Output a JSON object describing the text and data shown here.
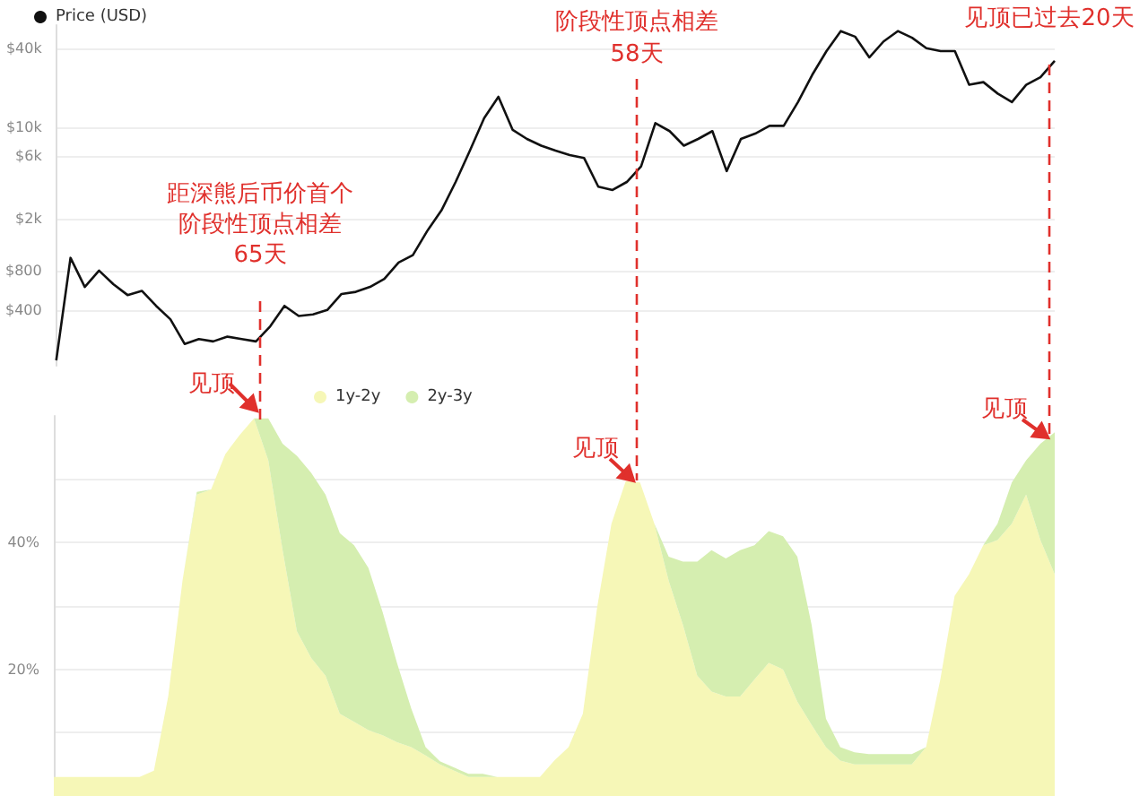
{
  "chart_data": [
    {
      "type": "line",
      "annotations": [
        "距深熊后币价首个",
        "阶段性顶点相差",
        "65天",
        "阶段性顶点相差",
        "58天",
        "见顶已过去20天"
      ],
      "categories": [
        null,
        null,
        null,
        null,
        null,
        null,
        null,
        null,
        null,
        null,
        null,
        null,
        null,
        null,
        null,
        null,
        null,
        null,
        null,
        null,
        null,
        null,
        null,
        null,
        null,
        null,
        null,
        null,
        null,
        null,
        null,
        null,
        null,
        null,
        null,
        null,
        null,
        null,
        null,
        null,
        null,
        null,
        null,
        null,
        null,
        null,
        null,
        null,
        null,
        null,
        null,
        null,
        null,
        null,
        null,
        null,
        null,
        null,
        null,
        null,
        null,
        null,
        null,
        null,
        null,
        null,
        null,
        null,
        null,
        null,
        null
      ],
      "series": [
        {
          "name": "Price (USD)",
          "color": "#111111",
          "values": [
            165,
            1000,
            600,
            800,
            630,
            520,
            560,
            430,
            340,
            220,
            240,
            230,
            250,
            240,
            230,
            300,
            430,
            360,
            370,
            400,
            530,
            550,
            600,
            690,
            920,
            1050,
            1600,
            2300,
            3800,
            6600,
            11700,
            17000,
            9500,
            8100,
            7200,
            6600,
            6100,
            5800,
            3500,
            3300,
            3800,
            5000,
            10700,
            9300,
            7200,
            8100,
            9300,
            4600,
            8100,
            8900,
            10200,
            10200,
            15500,
            25000,
            38000,
            54000,
            49000,
            34000,
            45000,
            54000,
            48000,
            40000,
            38000,
            38000,
            21000,
            22000,
            18000,
            15500,
            21000,
            24000,
            32000
          ]
        }
      ],
      "log": true,
      "ylim": [
        150,
        60000
      ],
      "yticks": [
        {
          "value": 400,
          "label": "$400"
        },
        {
          "value": 800,
          "label": "$800"
        },
        {
          "value": 2000,
          "label": "$2k"
        },
        {
          "value": 6000,
          "label": "$6k"
        },
        {
          "value": 10000,
          "label": "$10k"
        },
        {
          "value": 40000,
          "label": "$40k"
        }
      ],
      "grid": "y",
      "legend": "top left",
      "tick_labels": "y"
    },
    {
      "type": "area",
      "stacked": true,
      "annotations": [
        "见顶",
        "见顶",
        "见顶"
      ],
      "categories": [
        null,
        null,
        null,
        null,
        null,
        null,
        null,
        null,
        null,
        null,
        null,
        null,
        null,
        null,
        null,
        null,
        null,
        null,
        null,
        null,
        null,
        null,
        null,
        null,
        null,
        null,
        null,
        null,
        null,
        null,
        null,
        null,
        null,
        null,
        null,
        null,
        null,
        null,
        null,
        null,
        null,
        null,
        null,
        null,
        null,
        null,
        null,
        null,
        null,
        null,
        null,
        null,
        null,
        null,
        null,
        null,
        null,
        null,
        null,
        null,
        null,
        null,
        null,
        null,
        null,
        null,
        null,
        null,
        null,
        null,
        null
      ],
      "series": [
        {
          "name": "1y-2y",
          "color": "#f6f7b7",
          "values": [
            3,
            3,
            3,
            3,
            3,
            3,
            3,
            4,
            15.7,
            34,
            47.6,
            48.4,
            54,
            57,
            59.6,
            53,
            38.8,
            26,
            21.8,
            19,
            13,
            11.7,
            10.4,
            9.6,
            8.5,
            7.7,
            6.4,
            5,
            4,
            3,
            3,
            3,
            3,
            3,
            3,
            5.6,
            7.7,
            13,
            29.8,
            43,
            49.7,
            49.5,
            43,
            34,
            27,
            19,
            16.5,
            15.7,
            15.7,
            18.4,
            21,
            20,
            14.9,
            11.2,
            7.7,
            5.6,
            5,
            5,
            5,
            5,
            5,
            7.7,
            18.4,
            31.6,
            35,
            39.6,
            40.4,
            43,
            47.6,
            40.4,
            35
          ]
        },
        {
          "name": "2y-3y",
          "color": "#d5eeb0",
          "values": [
            0,
            0,
            0,
            0,
            0,
            0,
            0,
            0,
            0,
            0,
            0.4,
            0,
            0,
            0,
            0,
            6.6,
            16.8,
            27.7,
            29.2,
            28.6,
            28.5,
            27.9,
            25.6,
            19.4,
            12.5,
            6.1,
            1.3,
            0.5,
            0.5,
            0.5,
            0.5,
            0,
            0,
            0,
            0,
            0,
            0,
            0,
            0,
            0,
            0,
            0,
            0,
            3.8,
            10,
            18,
            22.3,
            21.8,
            23.1,
            21.2,
            20.8,
            21,
            22.9,
            15.8,
            4.5,
            2.1,
            1.9,
            1.6,
            1.6,
            1.6,
            1.6,
            0,
            0,
            0,
            0,
            0,
            2.6,
            6.5,
            5.4,
            15.2,
            22.4
          ]
        }
      ],
      "ylim": [
        0,
        60
      ],
      "yticks": [
        {
          "value": 10,
          "label": null
        },
        {
          "value": 20,
          "label": "20%"
        },
        {
          "value": 30,
          "label": null
        },
        {
          "value": 40,
          "label": "40%"
        },
        {
          "value": 50,
          "label": null
        }
      ],
      "grid": "y",
      "legend": "top",
      "tick_labels": "y"
    }
  ]
}
